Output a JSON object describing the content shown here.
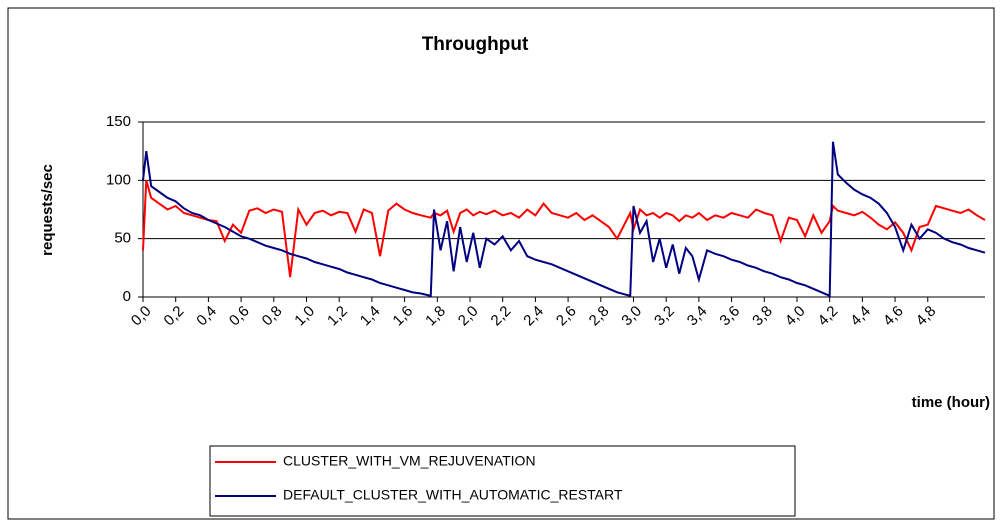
{
  "chart_data": {
    "type": "line",
    "title": "Throughput",
    "y_label": "requests/sec",
    "x_label": "time (hour)",
    "x": [
      0,
      0.02,
      0.05,
      0.1,
      0.15,
      0.2,
      0.25,
      0.3,
      0.35,
      0.4,
      0.45,
      0.5,
      0.55,
      0.6,
      0.65,
      0.7,
      0.75,
      0.8,
      0.85,
      0.9,
      0.95,
      1.0,
      1.05,
      1.1,
      1.15,
      1.2,
      1.25,
      1.3,
      1.35,
      1.4,
      1.45,
      1.5,
      1.55,
      1.6,
      1.65,
      1.7,
      1.76,
      1.78,
      1.82,
      1.86,
      1.9,
      1.94,
      1.98,
      2.02,
      2.06,
      2.1,
      2.15,
      2.2,
      2.25,
      2.3,
      2.35,
      2.4,
      2.45,
      2.5,
      2.55,
      2.6,
      2.65,
      2.7,
      2.75,
      2.8,
      2.85,
      2.9,
      2.98,
      3.0,
      3.04,
      3.08,
      3.12,
      3.16,
      3.2,
      3.24,
      3.28,
      3.32,
      3.36,
      3.4,
      3.45,
      3.5,
      3.55,
      3.6,
      3.65,
      3.7,
      3.75,
      3.8,
      3.85,
      3.9,
      3.95,
      4.0,
      4.05,
      4.1,
      4.15,
      4.2,
      4.22,
      4.25,
      4.3,
      4.35,
      4.4,
      4.45,
      4.5,
      4.55,
      4.6,
      4.65,
      4.7,
      4.75,
      4.8,
      4.85,
      4.9,
      4.95,
      5.0,
      5.05,
      5.1,
      5.15
    ],
    "series": [
      {
        "name": "CLUSTER_WITH_VM_REJUVENATION",
        "color": "#ff0000",
        "values": [
          40,
          100,
          85,
          80,
          75,
          78,
          72,
          70,
          68,
          66,
          65,
          48,
          62,
          55,
          74,
          76,
          72,
          75,
          73,
          17,
          75,
          62,
          72,
          74,
          70,
          73,
          72,
          56,
          75,
          72,
          35,
          74,
          80,
          75,
          72,
          70,
          68,
          72,
          70,
          74,
          56,
          72,
          75,
          70,
          73,
          71,
          74,
          70,
          72,
          68,
          75,
          70,
          80,
          72,
          70,
          68,
          72,
          66,
          70,
          65,
          60,
          50,
          72,
          58,
          75,
          70,
          72,
          68,
          72,
          70,
          65,
          70,
          68,
          72,
          66,
          70,
          68,
          72,
          70,
          68,
          75,
          72,
          70,
          48,
          68,
          66,
          52,
          70,
          55,
          65,
          78,
          74,
          72,
          70,
          73,
          68,
          62,
          58,
          64,
          55,
          40,
          60,
          62,
          78,
          76,
          74,
          72,
          75,
          70,
          66
        ]
      },
      {
        "name": "DEFAULT_CLUSTER_WITH_AUTOMATIC_RESTART",
        "color": "#000080",
        "values": [
          100,
          125,
          95,
          90,
          85,
          82,
          76,
          72,
          70,
          66,
          63,
          60,
          56,
          52,
          50,
          47,
          44,
          42,
          40,
          37,
          35,
          33,
          30,
          28,
          26,
          24,
          21,
          19,
          17,
          15,
          12,
          10,
          8,
          6,
          4,
          3,
          1,
          75,
          40,
          65,
          22,
          60,
          30,
          55,
          25,
          50,
          45,
          52,
          40,
          48,
          35,
          32,
          30,
          28,
          25,
          22,
          19,
          16,
          13,
          10,
          7,
          4,
          1,
          78,
          55,
          65,
          30,
          50,
          25,
          45,
          20,
          42,
          35,
          15,
          40,
          37,
          35,
          32,
          30,
          27,
          25,
          22,
          20,
          17,
          15,
          12,
          10,
          7,
          4,
          1,
          133,
          105,
          98,
          92,
          88,
          85,
          80,
          72,
          60,
          40,
          62,
          50,
          58,
          55,
          50,
          47,
          45,
          42,
          40,
          38
        ]
      }
    ],
    "xlim": [
      0,
      5.15
    ],
    "ylim": [
      0,
      150
    ],
    "yticks": [
      0,
      50,
      100,
      150
    ],
    "xticks": [
      {
        "value": 0,
        "label": "0,0"
      },
      {
        "value": 0.2,
        "label": "0,2"
      },
      {
        "value": 0.4,
        "label": "0,4"
      },
      {
        "value": 0.6,
        "label": "0,6"
      },
      {
        "value": 0.8,
        "label": "0,8"
      },
      {
        "value": 1.0,
        "label": "1,0"
      },
      {
        "value": 1.2,
        "label": "1,2"
      },
      {
        "value": 1.4,
        "label": "1,4"
      },
      {
        "value": 1.6,
        "label": "1,6"
      },
      {
        "value": 1.8,
        "label": "1,8"
      },
      {
        "value": 2.0,
        "label": "2,0"
      },
      {
        "value": 2.2,
        "label": "2,2"
      },
      {
        "value": 2.4,
        "label": "2,4"
      },
      {
        "value": 2.6,
        "label": "2,6"
      },
      {
        "value": 2.8,
        "label": "2,8"
      },
      {
        "value": 3.0,
        "label": "3,0"
      },
      {
        "value": 3.2,
        "label": "3,2"
      },
      {
        "value": 3.4,
        "label": "3,4"
      },
      {
        "value": 3.6,
        "label": "3,6"
      },
      {
        "value": 3.8,
        "label": "3,8"
      },
      {
        "value": 4.0,
        "label": "4,0"
      },
      {
        "value": 4.2,
        "label": "4,2"
      },
      {
        "value": 4.4,
        "label": "4,4"
      },
      {
        "value": 4.6,
        "label": "4,6"
      },
      {
        "value": 4.8,
        "label": "4,8"
      }
    ],
    "grid": true
  }
}
